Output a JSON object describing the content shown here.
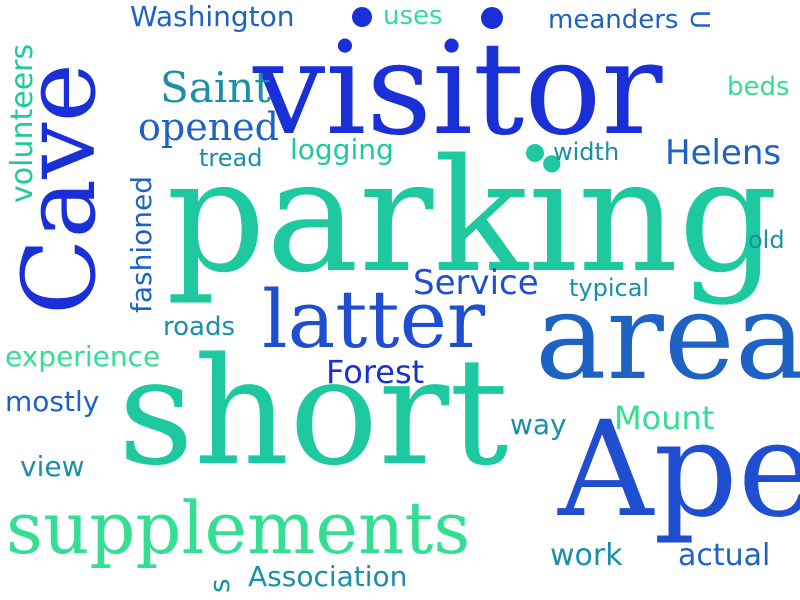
{
  "palette": {
    "deep_blue": "#1a2fd6",
    "royal_blue": "#1f4fd0",
    "ocean_blue": "#1e63c4",
    "teal": "#1a8fa8",
    "sea_green": "#1fc9a0",
    "mint": "#34de93"
  },
  "words": [
    {
      "id": "visitor",
      "text": "visitor"
    },
    {
      "id": "parking",
      "text": "parking"
    },
    {
      "id": "short",
      "text": "short"
    },
    {
      "id": "area",
      "text": "area"
    },
    {
      "id": "ape",
      "text": "Ape"
    },
    {
      "id": "cave",
      "text": "Cave"
    },
    {
      "id": "latter",
      "text": "latter"
    },
    {
      "id": "supplements",
      "text": "supplements"
    },
    {
      "id": "washington",
      "text": "Washington"
    },
    {
      "id": "uses",
      "text": "uses"
    },
    {
      "id": "meanders",
      "text": "meanders"
    },
    {
      "id": "u",
      "text": "U"
    },
    {
      "id": "saint",
      "text": "Saint"
    },
    {
      "id": "beds",
      "text": "beds"
    },
    {
      "id": "opened",
      "text": "opened"
    },
    {
      "id": "volunteers",
      "text": "volunteers"
    },
    {
      "id": "tread",
      "text": "tread"
    },
    {
      "id": "logging",
      "text": "logging"
    },
    {
      "id": "width",
      "text": "width"
    },
    {
      "id": "helens",
      "text": "Helens"
    },
    {
      "id": "fashioned",
      "text": "fashioned"
    },
    {
      "id": "old",
      "text": "old"
    },
    {
      "id": "service",
      "text": "Service"
    },
    {
      "id": "typical",
      "text": "typical"
    },
    {
      "id": "roads",
      "text": "roads"
    },
    {
      "id": "experience",
      "text": "experience"
    },
    {
      "id": "forest",
      "text": "Forest"
    },
    {
      "id": "mostly",
      "text": "mostly"
    },
    {
      "id": "mount",
      "text": "Mount"
    },
    {
      "id": "way",
      "text": "way"
    },
    {
      "id": "view",
      "text": "view"
    },
    {
      "id": "work",
      "text": "work"
    },
    {
      "id": "actual",
      "text": "actual"
    },
    {
      "id": "s",
      "text": "s"
    },
    {
      "id": "association",
      "text": "Association"
    }
  ]
}
